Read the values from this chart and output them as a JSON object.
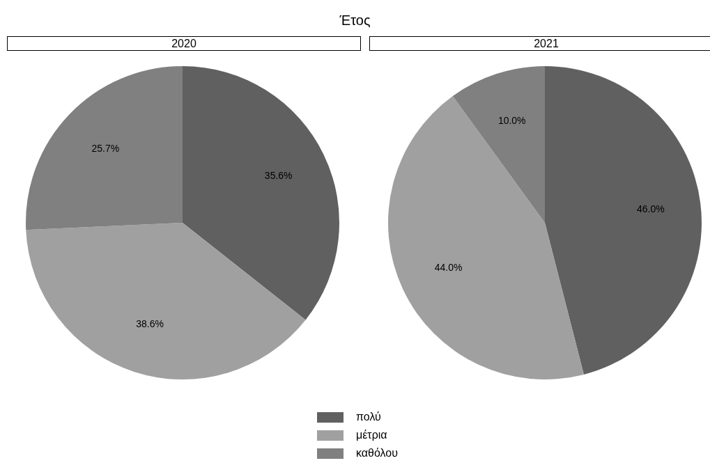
{
  "chart_data": {
    "type": "pie",
    "title": "Έτος",
    "categories": [
      "πολύ",
      "μέτρια",
      "καθόλου"
    ],
    "colors": [
      "#606060",
      "#a0a0a0",
      "#808080"
    ],
    "legend": "bottom",
    "series": [
      {
        "name": "2020",
        "values": [
          35.6,
          38.6,
          25.7
        ],
        "value_labels": [
          "35.6%",
          "38.6%",
          "25.7%"
        ]
      },
      {
        "name": "2021",
        "values": [
          46.0,
          44.0,
          10.0
        ],
        "value_labels": [
          "46.0%",
          "44.0%",
          "10.0%"
        ]
      }
    ]
  }
}
